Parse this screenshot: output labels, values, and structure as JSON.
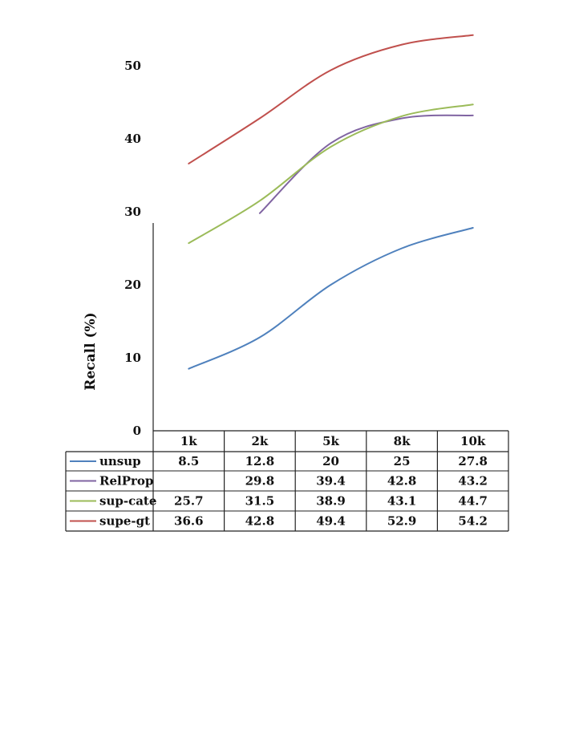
{
  "chart_data": {
    "type": "line",
    "title": "",
    "xlabel": "",
    "ylabel": "Recall (%)",
    "categories": [
      "1k",
      "2k",
      "5k",
      "8k",
      "10k"
    ],
    "ylim": [
      0,
      55
    ],
    "yticks": [
      0,
      10,
      20,
      30,
      40,
      50
    ],
    "grid": false,
    "legend": "data-table",
    "series": [
      {
        "name": "unsup",
        "color": "#4f81bd",
        "values": [
          8.5,
          12.8,
          20,
          25,
          27.8
        ]
      },
      {
        "name": "RelProp",
        "color": "#8064a2",
        "values": [
          null,
          29.8,
          39.4,
          42.8,
          43.2
        ]
      },
      {
        "name": "sup-cate",
        "color": "#9bbb59",
        "values": [
          25.7,
          31.5,
          38.9,
          43.1,
          44.7
        ]
      },
      {
        "name": "supe-gt",
        "color": "#c0504d",
        "values": [
          36.6,
          42.8,
          49.4,
          52.9,
          54.2
        ]
      }
    ]
  }
}
